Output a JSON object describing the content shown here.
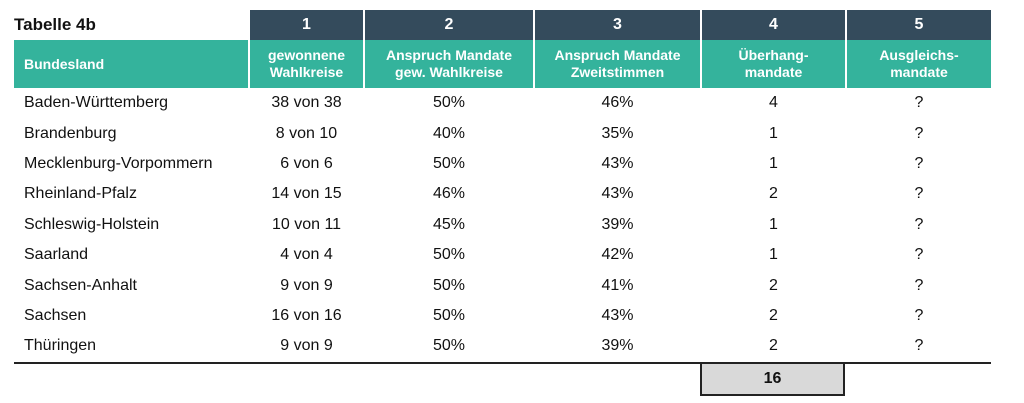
{
  "table": {
    "title": "Tabelle 4b",
    "numbers": [
      "1",
      "2",
      "3",
      "4",
      "5"
    ],
    "headers": [
      [
        "Bundesland"
      ],
      [
        "gewonnene",
        "Wahlkreise"
      ],
      [
        "Anspruch Mandate",
        "gew. Wahlkreise"
      ],
      [
        "Anspruch Mandate",
        "Zweitstimmen"
      ],
      [
        "Überhang-",
        "mandate"
      ],
      [
        "Ausgleichs-",
        "mandate"
      ]
    ],
    "rows": [
      [
        "Baden-Württemberg",
        "38 von 38",
        "50%",
        "46%",
        "4",
        "?"
      ],
      [
        "Brandenburg",
        "8 von 10",
        "40%",
        "35%",
        "1",
        "?"
      ],
      [
        "Mecklenburg-Vorpommern",
        "6 von 6",
        "50%",
        "43%",
        "1",
        "?"
      ],
      [
        "Rheinland-Pfalz",
        "14 von 15",
        "46%",
        "43%",
        "2",
        "?"
      ],
      [
        "Schleswig-Holstein",
        "10 von 11",
        "45%",
        "39%",
        "1",
        "?"
      ],
      [
        "Saarland",
        "4 von 4",
        "50%",
        "42%",
        "1",
        "?"
      ],
      [
        "Sachsen-Anhalt",
        "9 von 9",
        "50%",
        "41%",
        "2",
        "?"
      ],
      [
        "Sachsen",
        "16 von 16",
        "50%",
        "43%",
        "2",
        "?"
      ],
      [
        "Thüringen",
        "9 von 9",
        "50%",
        "39%",
        "2",
        "?"
      ]
    ],
    "total": "16"
  },
  "colors": {
    "header_dark": "#344b5c",
    "header_teal": "#34b39c",
    "total_bg": "#d9d9d9"
  }
}
